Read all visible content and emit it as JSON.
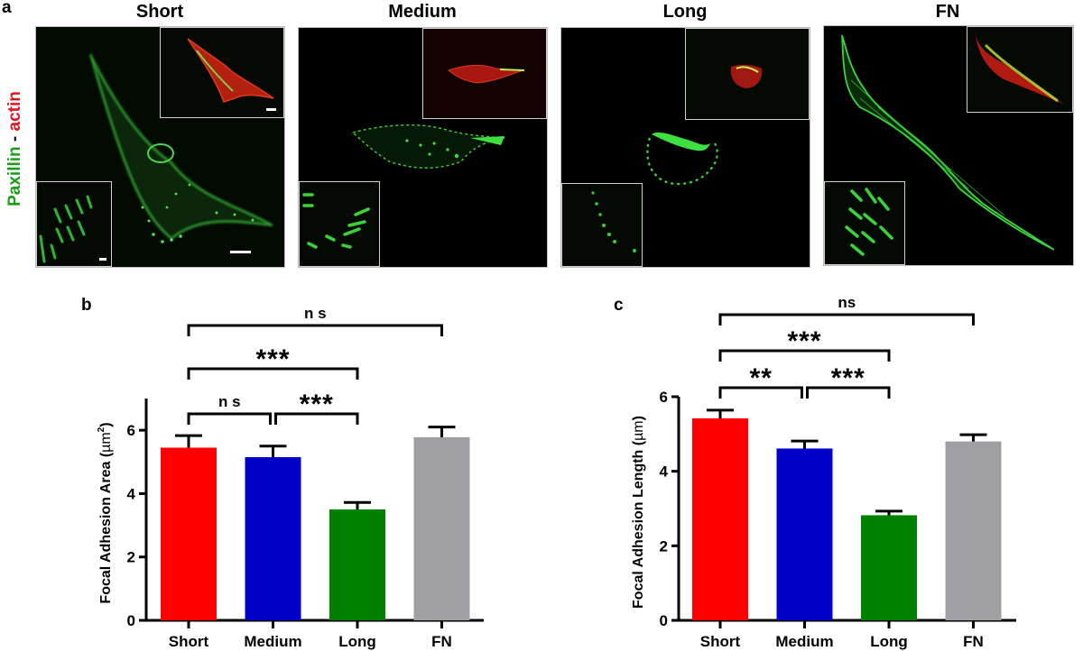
{
  "figure": {
    "panel_a": {
      "letter": "a",
      "stain_label": {
        "green_part": "Paxillin",
        "separator": " - ",
        "red_part": "actin"
      },
      "stain_colors": {
        "green": "#1a9e1a",
        "red": "#e0141e"
      },
      "images": [
        {
          "title": "Short"
        },
        {
          "title": "Medium"
        },
        {
          "title": "Long"
        },
        {
          "title": "FN"
        }
      ]
    },
    "panel_b": {
      "letter": "b"
    },
    "panel_c": {
      "letter": "c"
    }
  },
  "chart_data": [
    {
      "panel": "b",
      "type": "bar",
      "title": "",
      "xlabel": "",
      "ylabel": "Focal Adhesion Area (µm²)",
      "ylabel_text": "Focal Adhesion Area (",
      "ylabel_unit": "µm",
      "ylabel_sup": "2",
      "ylabel_close": ")",
      "categories": [
        "Short",
        "Medium",
        "Long",
        "FN"
      ],
      "values": [
        5.45,
        5.15,
        3.5,
        5.78
      ],
      "errors": [
        0.38,
        0.35,
        0.22,
        0.32
      ],
      "colors": [
        "#ff0000",
        "#0000c8",
        "#008000",
        "#a0a0a4"
      ],
      "ylim": [
        0,
        7
      ],
      "yticks": [
        0,
        2,
        4,
        6
      ],
      "grid": false,
      "legend": null,
      "significance": [
        {
          "from": "Short",
          "to": "FN",
          "label": "n s",
          "level": 3
        },
        {
          "from": "Short",
          "to": "Long",
          "label": "***",
          "level": 2
        },
        {
          "from": "Short",
          "to": "Medium",
          "label": "n s",
          "level": 1
        },
        {
          "from": "Medium",
          "to": "Long",
          "label": "***",
          "level": 1
        }
      ]
    },
    {
      "panel": "c",
      "type": "bar",
      "title": "",
      "xlabel": "",
      "ylabel": "Focal Adhesion Length (µm)",
      "ylabel_text": "Focal Adhesion Length (",
      "ylabel_unit": "µm",
      "ylabel_close": ")",
      "categories": [
        "Short",
        "Medium",
        "Long",
        "FN"
      ],
      "values": [
        5.42,
        4.61,
        2.82,
        4.8
      ],
      "errors": [
        0.22,
        0.2,
        0.11,
        0.18
      ],
      "colors": [
        "#ff0000",
        "#0000c8",
        "#008000",
        "#a0a0a4"
      ],
      "ylim": [
        0,
        6
      ],
      "yticks": [
        0,
        2,
        4,
        6
      ],
      "grid": false,
      "legend": null,
      "significance": [
        {
          "from": "Short",
          "to": "FN",
          "label": "ns",
          "level": 3
        },
        {
          "from": "Short",
          "to": "Long",
          "label": "***",
          "level": 2
        },
        {
          "from": "Short",
          "to": "Medium",
          "label": "**",
          "level": 1
        },
        {
          "from": "Medium",
          "to": "Long",
          "label": "***",
          "level": 1
        }
      ]
    }
  ]
}
